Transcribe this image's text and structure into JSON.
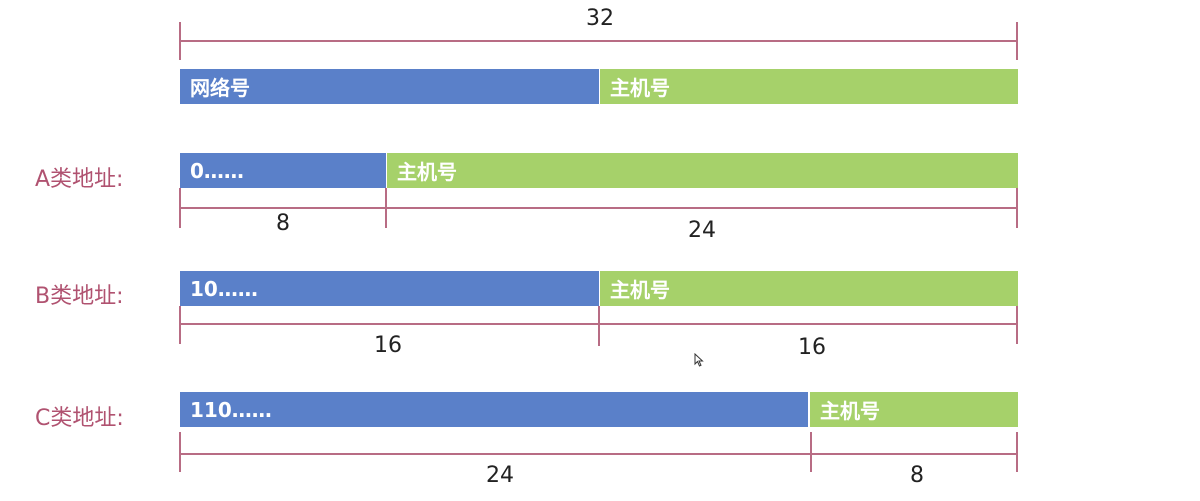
{
  "colors": {
    "network": "#5a80c9",
    "host": "#a6d16a",
    "label": "#b05270",
    "dimension_line": "#b86c84"
  },
  "top_row": {
    "total_bits": "32",
    "network_label": "网络号",
    "host_label": "主机号"
  },
  "rows": [
    {
      "class_label": "A类地址:",
      "network_text": "0……",
      "host_text": "主机号",
      "network_bits": "8",
      "host_bits": "24"
    },
    {
      "class_label": "B类地址:",
      "network_text": "10……",
      "host_text": "主机号",
      "network_bits": "16",
      "host_bits": "16"
    },
    {
      "class_label": "C类地址:",
      "network_text": "110……",
      "host_text": "主机号",
      "network_bits": "24",
      "host_bits": "8"
    }
  ],
  "cursor": {
    "icon": "mouse-pointer-icon"
  }
}
